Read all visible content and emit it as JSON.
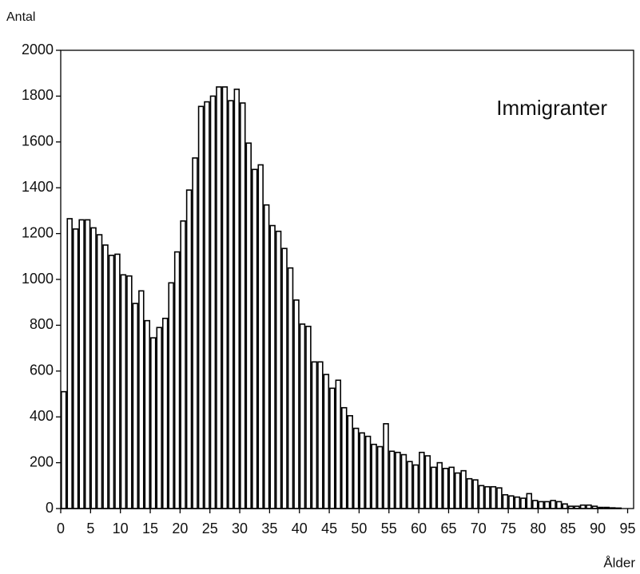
{
  "chart_data": {
    "type": "histogram",
    "title": "Immigranter",
    "ylabel": "Antal",
    "xlabel": "Ålder",
    "bins": [
      0,
      1,
      2,
      3,
      4,
      5,
      6,
      7,
      8,
      9,
      10,
      11,
      12,
      13,
      14,
      15,
      16,
      17,
      18,
      19,
      20,
      21,
      22,
      23,
      24,
      25,
      26,
      27,
      28,
      29,
      30,
      31,
      32,
      33,
      34,
      35,
      36,
      37,
      38,
      39,
      40,
      41,
      42,
      43,
      44,
      45,
      46,
      47,
      48,
      49,
      50,
      51,
      52,
      53,
      54,
      55,
      56,
      57,
      58,
      59,
      60,
      61,
      62,
      63,
      64,
      65,
      66,
      67,
      68,
      69,
      70,
      71,
      72,
      73,
      74,
      75,
      76,
      77,
      78,
      79,
      80,
      81,
      82,
      83,
      84,
      85,
      86,
      87,
      88,
      89,
      90,
      91,
      92,
      93,
      94
    ],
    "values": [
      510,
      1265,
      1220,
      1260,
      1260,
      1225,
      1195,
      1150,
      1105,
      1110,
      1020,
      1015,
      895,
      950,
      820,
      745,
      790,
      830,
      985,
      1120,
      1255,
      1390,
      1530,
      1755,
      1775,
      1800,
      1840,
      1840,
      1780,
      1830,
      1770,
      1595,
      1480,
      1500,
      1325,
      1235,
      1210,
      1135,
      1050,
      910,
      805,
      795,
      640,
      640,
      585,
      525,
      560,
      440,
      405,
      350,
      330,
      315,
      280,
      270,
      370,
      250,
      245,
      235,
      205,
      190,
      245,
      230,
      180,
      200,
      175,
      180,
      155,
      165,
      130,
      125,
      100,
      95,
      95,
      90,
      60,
      55,
      50,
      45,
      65,
      35,
      30,
      30,
      35,
      30,
      20,
      10,
      10,
      15,
      15,
      10,
      5,
      5,
      3,
      2
    ],
    "color": "#ffffff",
    "edgecolor": "#000000",
    "xlim": [
      0,
      96
    ],
    "xticks": [
      0,
      5,
      10,
      15,
      20,
      25,
      30,
      35,
      40,
      45,
      50,
      55,
      60,
      65,
      70,
      75,
      80,
      85,
      90,
      95
    ],
    "ylim": [
      0,
      2000
    ],
    "yticks": [
      0,
      200,
      400,
      600,
      800,
      1000,
      1200,
      1400,
      1600,
      1800,
      2000
    ]
  }
}
